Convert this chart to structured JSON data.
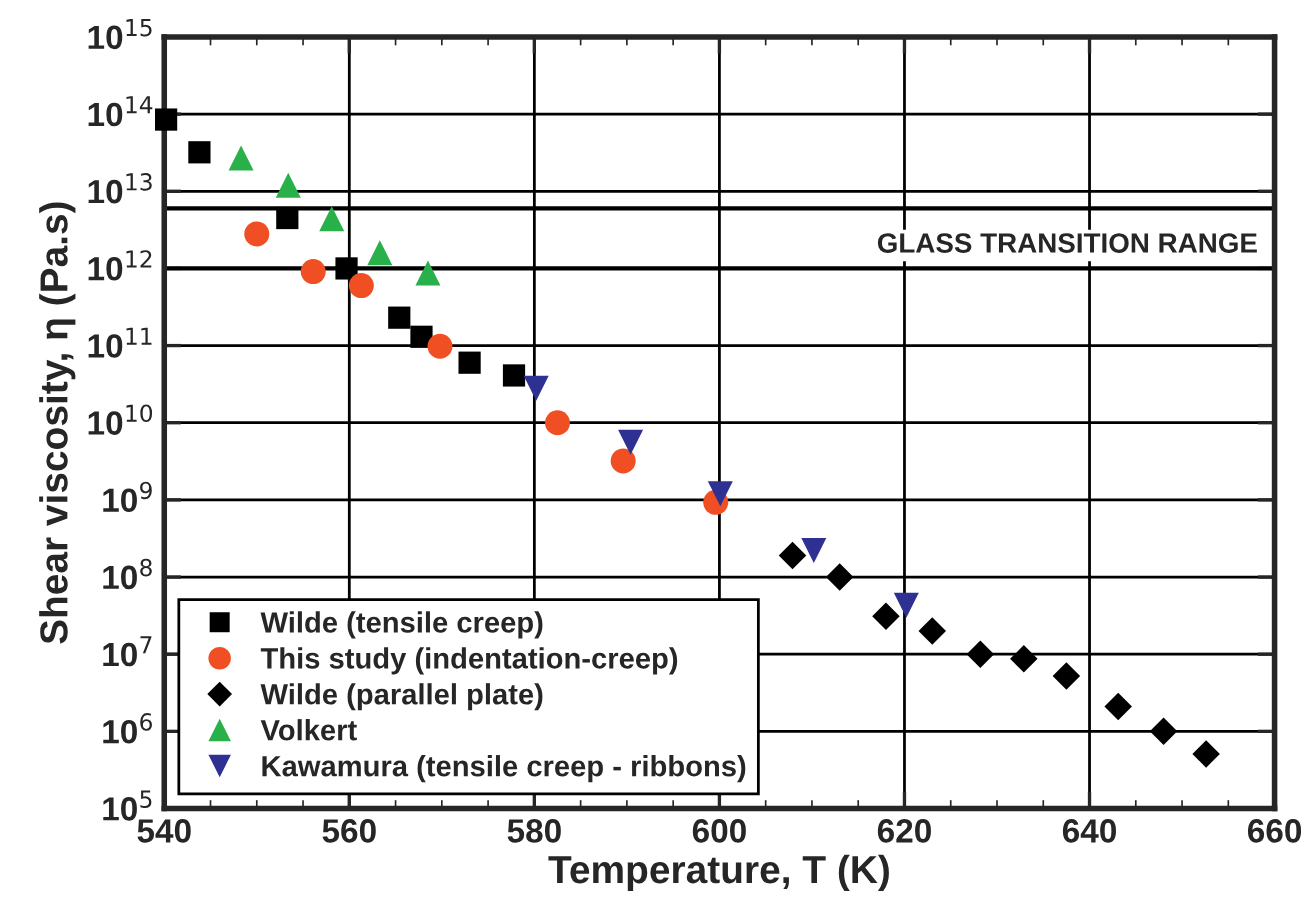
{
  "chart_data": {
    "type": "scatter",
    "xlabel": "Temperature, T (K)",
    "ylabel": "Shear viscosity, η (Pa.s)",
    "log": "y",
    "grid": true,
    "legend": "bottom left",
    "xlim": [
      540,
      660
    ],
    "xticks": [
      540,
      560,
      580,
      600,
      620,
      640,
      660
    ],
    "ylim": [
      100000.0,
      1000000000000000.0
    ],
    "yticks": [
      {
        "value": 100000.0,
        "label": "10$^{5}$"
      },
      {
        "value": 1000000.0,
        "label": "10$^{6}$"
      },
      {
        "value": 10000000.0,
        "label": "10$^{7}$"
      },
      {
        "value": 100000000.0,
        "label": "10$^{8}$"
      },
      {
        "value": 1000000000.0,
        "label": "10$^{9}$"
      },
      {
        "value": 10000000000.0,
        "label": "10$^{10}$"
      },
      {
        "value": 100000000000.0,
        "label": "10$^{11}$"
      },
      {
        "value": 1000000000000.0,
        "label": "10$^{12}$"
      },
      {
        "value": 10000000000000.0,
        "label": "10$^{13}$"
      },
      {
        "value": 100000000000000.0,
        "label": "10$^{14}$"
      },
      {
        "value": 1000000000000000.0,
        "label": "10$^{15}$"
      }
    ],
    "ref_lines": [
      {
        "axis": "y",
        "value": 6000000000000.0
      },
      {
        "axis": "y",
        "value": 1000000000000.0,
        "label": "GLASS TRANSITION RANGE"
      }
    ],
    "series": [
      {
        "name": "Wilde (tensile creep)",
        "color": "#000000",
        "marker": "square",
        "x": [
          540.2,
          543.8,
          553.3,
          559.7,
          565.4,
          567.8,
          573.0,
          577.8
        ],
        "values": [
          85000000000000.0,
          32000000000000.0,
          4500000000000.0,
          1000000000000.0,
          230000000000.0,
          130000000000.0,
          60000000000.0,
          41000000000.0
        ]
      },
      {
        "name": "This study (indentation-creep)",
        "color": "#f04e23",
        "marker": "circle",
        "x": [
          550.0,
          556.1,
          561.3,
          569.8,
          582.5,
          589.6,
          599.6
        ],
        "values": [
          2800000000000.0,
          910000000000.0,
          600000000000.0,
          98000000000.0,
          10000000000.0,
          3200000000.0,
          930000000.0
        ]
      },
      {
        "name": "Wilde (parallel plate)",
        "color": "#000000",
        "marker": "diamond",
        "x": [
          607.9,
          613.0,
          618.0,
          623.0,
          628.2,
          632.9,
          637.5,
          643.1,
          648.0,
          652.6
        ],
        "values": [
          190000000.0,
          100000000.0,
          31000000.0,
          20000000.0,
          10000000.0,
          8700000.0,
          5200000.0,
          2100000.0,
          1000000.0,
          510000.0
        ]
      },
      {
        "name": "Volkert",
        "color": "#2ab04a",
        "marker": "triangle",
        "x": [
          548.3,
          553.4,
          558.1,
          563.3,
          568.5
        ],
        "values": [
          27000000000000.0,
          12000000000000.0,
          4400000000000.0,
          1600000000000.0,
          870000000000.0
        ]
      },
      {
        "name": "Kawamura (tensile creep - ribbons)",
        "color": "#2e3192",
        "marker": "triangle_down",
        "x": [
          580.2,
          590.4,
          600.1,
          610.2,
          620.2
        ],
        "values": [
          28000000000.0,
          5600000000.0,
          1200000000.0,
          220000000.0,
          43000000.0
        ]
      }
    ]
  }
}
